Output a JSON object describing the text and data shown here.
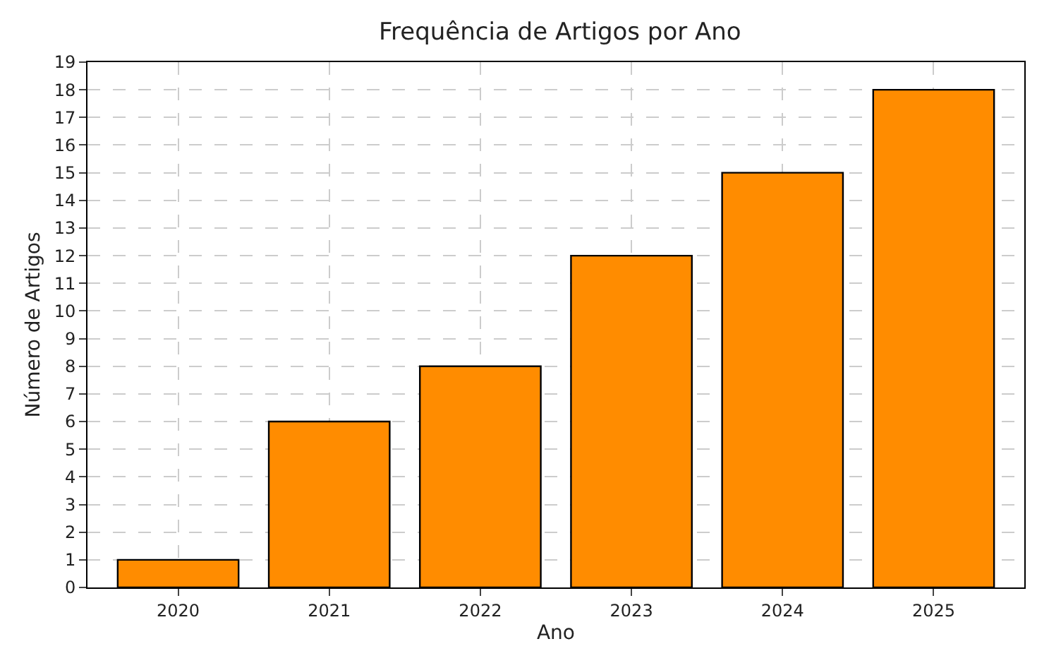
{
  "chart_data": {
    "type": "bar",
    "title": "Frequência de Artigos por Ano",
    "xlabel": "Ano",
    "ylabel": "Número de Artigos",
    "categories": [
      "2020",
      "2021",
      "2022",
      "2023",
      "2024",
      "2025"
    ],
    "values": [
      1,
      6,
      8,
      12,
      15,
      18
    ],
    "color": "#ff8c00",
    "ylim": [
      0,
      19
    ],
    "yticks": [
      0,
      1,
      2,
      3,
      4,
      5,
      6,
      7,
      8,
      9,
      10,
      11,
      12,
      13,
      14,
      15,
      16,
      17,
      18,
      19
    ],
    "grid": true
  }
}
